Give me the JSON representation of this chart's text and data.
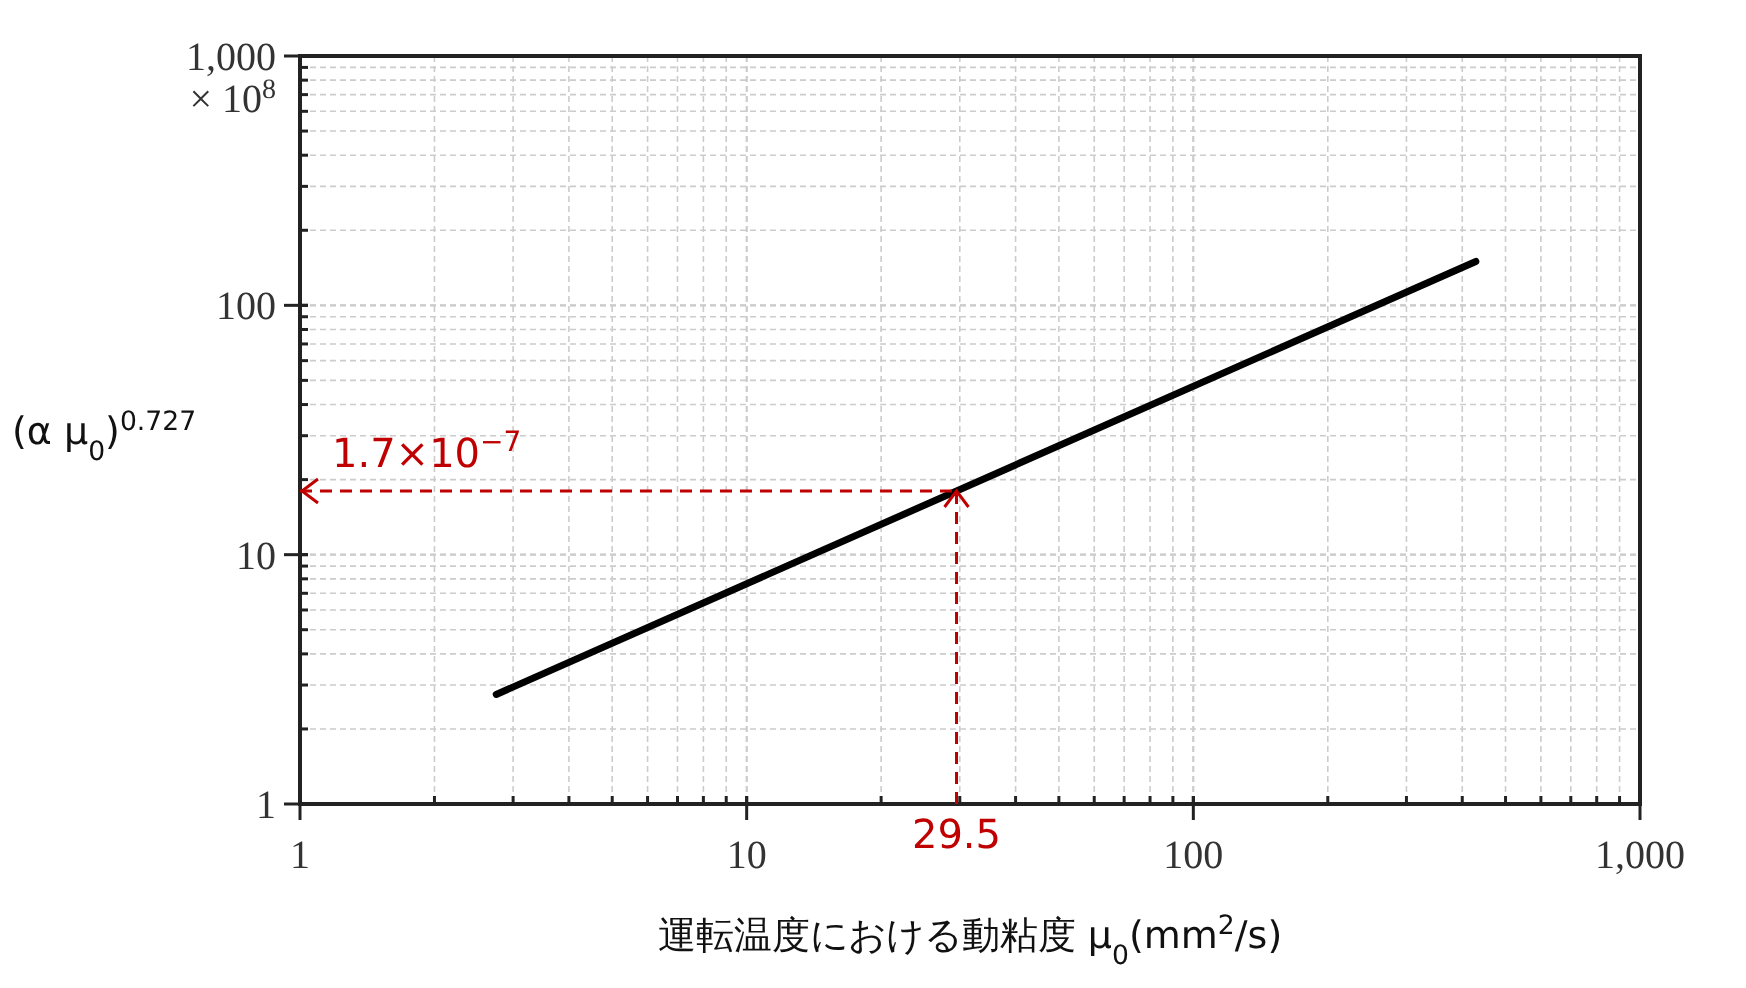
{
  "chart_data": {
    "type": "line",
    "xlabel": "運転温度における動粘度 μ$_{0}$(mm$^{2}$/s)",
    "ylabel": "(α μ$_{0}$)$^{0.727}$",
    "log": "xy",
    "xlim": [
      1,
      1000
    ],
    "ylim": [
      1,
      1000
    ],
    "xticks": [
      1,
      10,
      100,
      {
        "value": 1000,
        "label": "1,000"
      }
    ],
    "yticks": [
      1,
      10,
      100,
      {
        "value": 1000,
        "label": "1,000"
      }
    ],
    "grid": true,
    "series": [
      {
        "color": "#000000",
        "x": [
          2.75,
          429
        ],
        "values": [
          2.75,
          150
        ]
      }
    ],
    "ref_lines": [
      {
        "axis": "y",
        "value": 18,
        "label": "1.7×10$^{−7}$",
        "color": "#c00000",
        "line_style": "dashed"
      },
      {
        "axis": "x",
        "value": 29.5,
        "label": "29.5",
        "color": "#c00000",
        "line_style": "dashed"
      }
    ],
    "annotations": [
      "× 10$^{8}$"
    ]
  }
}
